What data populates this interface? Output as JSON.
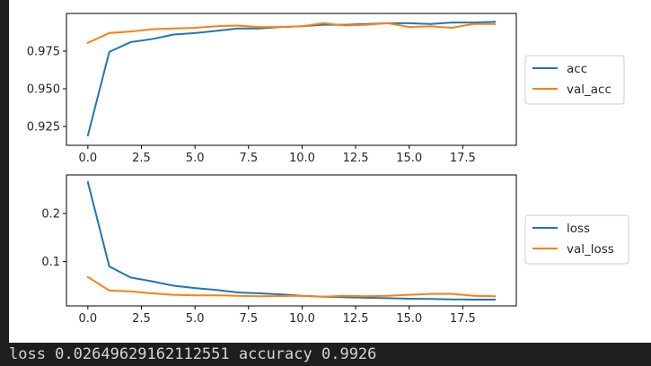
{
  "chart_data": [
    {
      "type": "line",
      "x": [
        0,
        1,
        2,
        3,
        4,
        5,
        6,
        7,
        8,
        9,
        10,
        11,
        12,
        13,
        14,
        15,
        16,
        17,
        18,
        19
      ],
      "xlim": [
        -1,
        20
      ],
      "ylim": [
        0.9125,
        1.0
      ],
      "xticks": [
        0.0,
        2.5,
        5.0,
        7.5,
        10.0,
        12.5,
        15.0,
        17.5
      ],
      "xtick_labels": [
        "0.0",
        "2.5",
        "5.0",
        "7.5",
        "10.0",
        "12.5",
        "15.0",
        "17.5"
      ],
      "yticks": [
        0.925,
        0.95,
        0.975
      ],
      "ytick_labels": [
        "0.925",
        "0.950",
        "0.975"
      ],
      "legend_position": "right",
      "grid": false,
      "series": [
        {
          "name": "acc",
          "color": "#1f77b4",
          "values": [
            0.919,
            0.9745,
            0.981,
            0.983,
            0.986,
            0.987,
            0.9885,
            0.99,
            0.99,
            0.991,
            0.9915,
            0.9925,
            0.9925,
            0.993,
            0.9935,
            0.9935,
            0.993,
            0.994,
            0.994,
            0.9945
          ]
        },
        {
          "name": "val_acc",
          "color": "#ff7f0e",
          "values": [
            0.9805,
            0.987,
            0.988,
            0.9895,
            0.99,
            0.9905,
            0.9915,
            0.992,
            0.991,
            0.991,
            0.9915,
            0.9935,
            0.992,
            0.9925,
            0.9935,
            0.991,
            0.9915,
            0.9905,
            0.993,
            0.993
          ]
        }
      ]
    },
    {
      "type": "line",
      "x": [
        0,
        1,
        2,
        3,
        4,
        5,
        6,
        7,
        8,
        9,
        10,
        11,
        12,
        13,
        14,
        15,
        16,
        17,
        18,
        19
      ],
      "xlim": [
        -1,
        20
      ],
      "ylim": [
        0.008,
        0.28
      ],
      "xticks": [
        0.0,
        2.5,
        5.0,
        7.5,
        10.0,
        12.5,
        15.0,
        17.5
      ],
      "xtick_labels": [
        "0.0",
        "2.5",
        "5.0",
        "7.5",
        "10.0",
        "12.5",
        "15.0",
        "17.5"
      ],
      "yticks": [
        0.1,
        0.2
      ],
      "ytick_labels": [
        "0.1",
        "0.2"
      ],
      "legend_position": "right",
      "grid": false,
      "series": [
        {
          "name": "loss",
          "color": "#1f77b4",
          "values": [
            0.265,
            0.09,
            0.067,
            0.059,
            0.05,
            0.045,
            0.041,
            0.036,
            0.034,
            0.032,
            0.029,
            0.027,
            0.026,
            0.025,
            0.024,
            0.023,
            0.0225,
            0.0215,
            0.021,
            0.021
          ]
        },
        {
          "name": "val_loss",
          "color": "#ff7f0e",
          "values": [
            0.068,
            0.04,
            0.038,
            0.034,
            0.031,
            0.03,
            0.03,
            0.029,
            0.028,
            0.0285,
            0.029,
            0.027,
            0.029,
            0.028,
            0.029,
            0.031,
            0.033,
            0.033,
            0.029,
            0.028
          ]
        }
      ]
    }
  ],
  "output": {
    "text": "loss 0.02649629162112551 accuracy 0.9926"
  }
}
